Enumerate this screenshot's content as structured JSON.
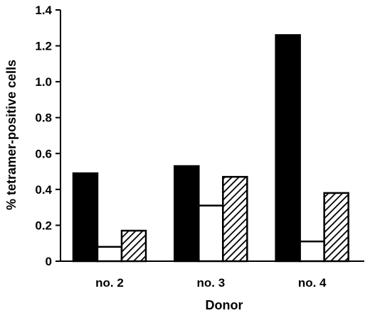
{
  "chart_data": {
    "type": "bar",
    "title": "",
    "xlabel": "Donor",
    "ylabel": "% tetramer-positive cells",
    "categories": [
      "no. 2",
      "no. 3",
      "no. 4"
    ],
    "ylim": [
      0,
      1.4
    ],
    "yticks": [
      "0",
      "0.2",
      "0.4",
      "0.6",
      "0.8",
      "1.0",
      "1.2",
      "1.4"
    ],
    "grid": false,
    "legend": "none",
    "series": [
      {
        "fill": "solid",
        "color": "#000000",
        "values": [
          0.49,
          0.53,
          1.26
        ]
      },
      {
        "fill": "open",
        "color": "#ffffff",
        "values": [
          0.08,
          0.31,
          0.11
        ]
      },
      {
        "fill": "hatched",
        "color": "#000000",
        "values": [
          0.17,
          0.47,
          0.38
        ]
      }
    ]
  }
}
